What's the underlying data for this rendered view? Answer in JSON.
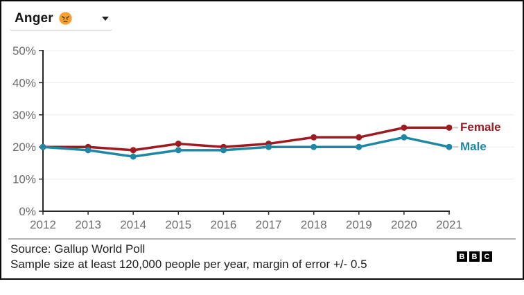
{
  "frame": {
    "border_color": "#0a0a0a",
    "background": "#ffffff"
  },
  "dropdown": {
    "label": "Anger",
    "icon": "angry-face-emoji",
    "caret_icon": "chevron-down-icon"
  },
  "chart_data": {
    "type": "line",
    "x": [
      2012,
      2013,
      2014,
      2015,
      2016,
      2017,
      2018,
      2019,
      2020,
      2021
    ],
    "series": [
      {
        "name": "Female",
        "color": "#9c1a20",
        "values": [
          20,
          20,
          19,
          21,
          20,
          21,
          23,
          23,
          26,
          26
        ]
      },
      {
        "name": "Male",
        "color": "#1f87a4",
        "values": [
          20,
          19,
          17,
          19,
          19,
          20,
          20,
          20,
          23,
          20
        ]
      }
    ],
    "title": "",
    "xlabel": "",
    "ylabel": "",
    "ylim": [
      0,
      50
    ],
    "y_tick_step": 10,
    "y_tick_suffix": "%",
    "grid": true,
    "legend_position": "right-of-line-end",
    "axis_color": "#262626",
    "grid_color": "#ececec",
    "tick_label_color": "#6d6d6d",
    "leader_dash_color": "#c4c4c4"
  },
  "footer": {
    "source_line1": "Source: Gallup World Poll",
    "source_line2": "Sample size at least 120,000 people per year, margin of error +/- 0.5",
    "divider_color": "#b3b3b3"
  },
  "logo": {
    "name": "BBC",
    "letters": [
      "B",
      "B",
      "C"
    ]
  }
}
